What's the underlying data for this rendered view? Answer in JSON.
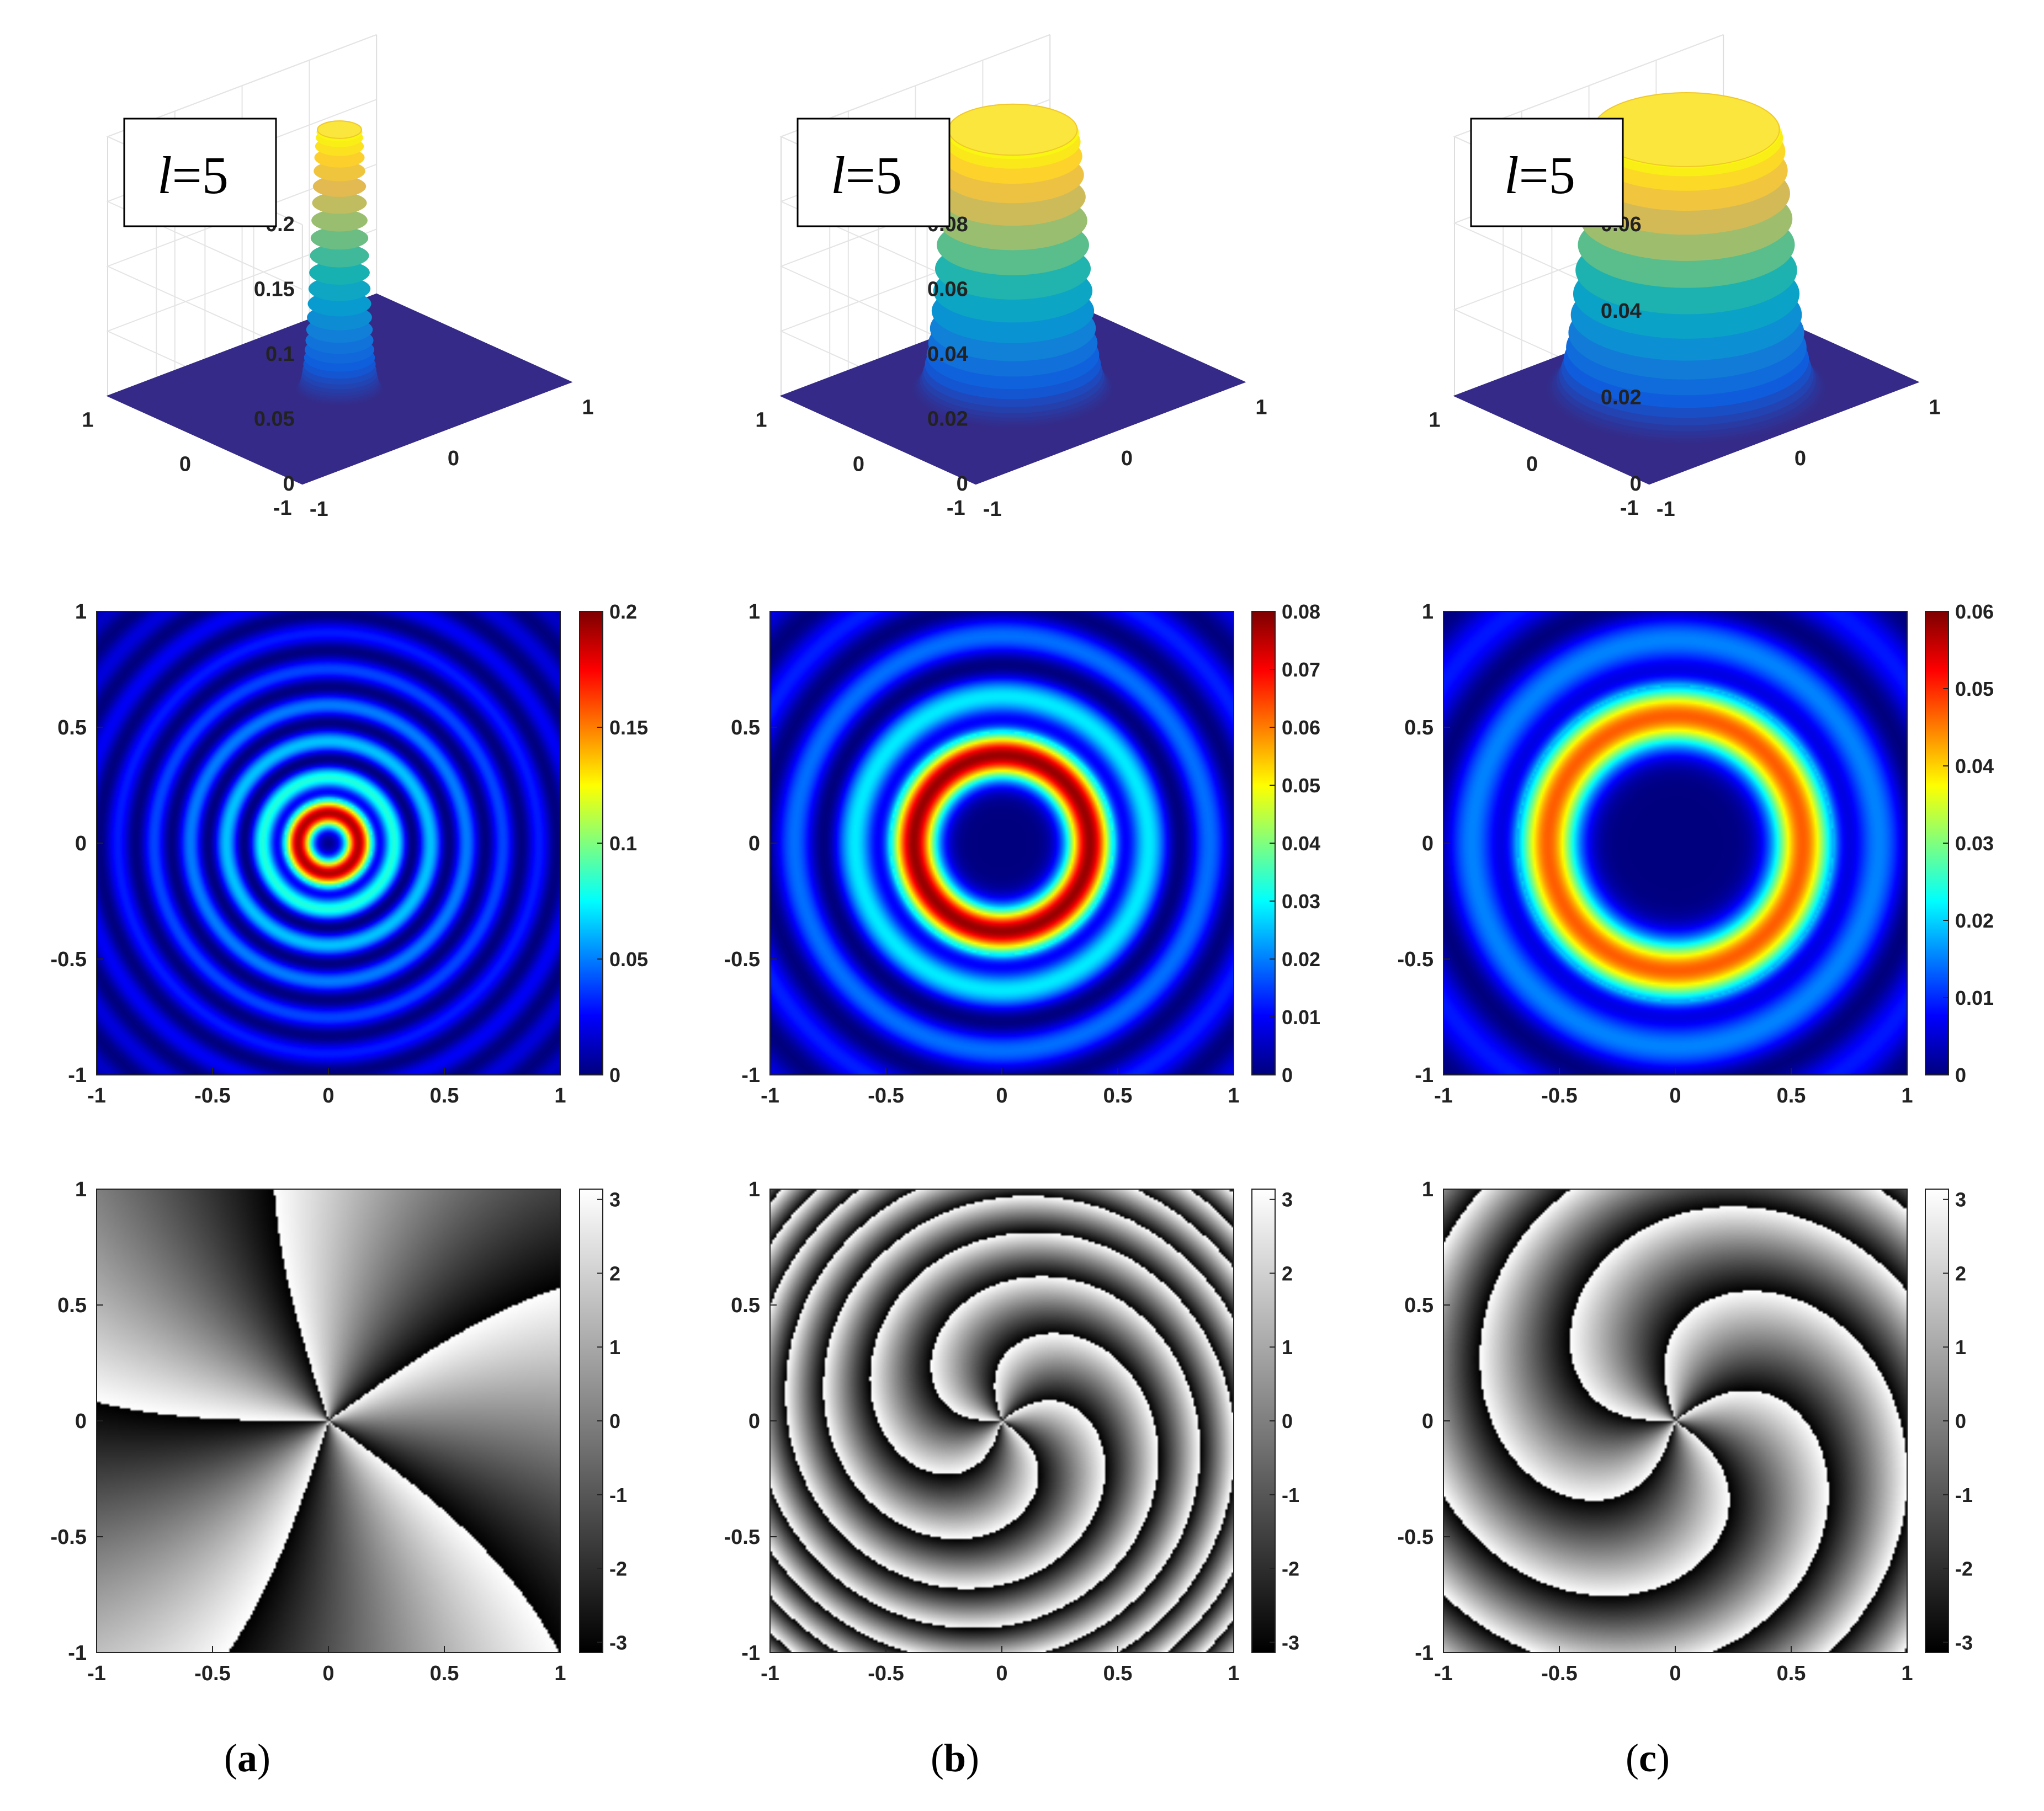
{
  "chart_data": [
    {
      "panel": "a",
      "row": "surface",
      "type": "area",
      "label_text": "l=5",
      "label_var": "l",
      "label_eq": "=5",
      "zlim": [
        0,
        0.2
      ],
      "ring_radius": 0.13,
      "ring_width": 0.06,
      "z_ticks": [
        "0",
        "0.05",
        "0.1",
        "0.15",
        "0.2"
      ],
      "x_ticks": [
        "-1",
        "0",
        "1"
      ],
      "y_ticks": [
        "-1",
        "0",
        "1"
      ]
    },
    {
      "panel": "b",
      "row": "surface",
      "type": "area",
      "label_text": "l=5",
      "label_var": "l",
      "label_eq": "=5",
      "zlim": [
        0,
        0.08
      ],
      "ring_radius": 0.38,
      "ring_width": 0.1,
      "z_ticks": [
        "0",
        "0.02",
        "0.04",
        "0.06",
        "0.08"
      ],
      "x_ticks": [
        "-1",
        "0",
        "1"
      ],
      "y_ticks": [
        "-1",
        "0",
        "1"
      ]
    },
    {
      "panel": "c",
      "row": "surface",
      "type": "area",
      "label_text": "l=5",
      "label_var": "l",
      "label_eq": "=5",
      "zlim": [
        0,
        0.06
      ],
      "ring_radius": 0.55,
      "ring_width": 0.13,
      "z_ticks": [
        "0",
        "0.02",
        "0.04",
        "0.06"
      ],
      "x_ticks": [
        "-1",
        "0",
        "1"
      ],
      "y_ticks": [
        "-1",
        "0",
        "1"
      ]
    },
    {
      "panel": "a",
      "row": "intensity",
      "type": "heatmap",
      "xlim": [
        -1,
        1
      ],
      "ylim": [
        -1,
        1
      ],
      "x_ticks": [
        "-1",
        "-0.5",
        "0",
        "0.5",
        "1"
      ],
      "y_ticks": [
        "-1",
        "-0.5",
        "0",
        "0.5",
        "1"
      ],
      "colorbar_ticks": [
        "0",
        "0.05",
        "0.1",
        "0.15",
        "0.2"
      ],
      "colorbar_range": [
        0,
        0.2
      ],
      "ring_radius": 0.13,
      "ring_width": 0.06,
      "ring_peak": 0.19
    },
    {
      "panel": "b",
      "row": "intensity",
      "type": "heatmap",
      "xlim": [
        -1,
        1
      ],
      "ylim": [
        -1,
        1
      ],
      "x_ticks": [
        "-1",
        "-0.5",
        "0",
        "0.5",
        "1"
      ],
      "y_ticks": [
        "-1",
        "-0.5",
        "0",
        "0.5",
        "1"
      ],
      "colorbar_ticks": [
        "0",
        "0.01",
        "0.02",
        "0.03",
        "0.04",
        "0.05",
        "0.06",
        "0.07",
        "0.08"
      ],
      "colorbar_range": [
        0,
        0.08
      ],
      "ring_radius": 0.38,
      "ring_width": 0.1,
      "ring_peak": 0.078
    },
    {
      "panel": "c",
      "row": "intensity",
      "type": "heatmap",
      "xlim": [
        -1,
        1
      ],
      "ylim": [
        -1,
        1
      ],
      "x_ticks": [
        "-1",
        "-0.5",
        "0",
        "0.5",
        "1"
      ],
      "y_ticks": [
        "-1",
        "-0.5",
        "0",
        "0.5",
        "1"
      ],
      "colorbar_ticks": [
        "0",
        "0.01",
        "0.02",
        "0.03",
        "0.04",
        "0.05",
        "0.06"
      ],
      "colorbar_range": [
        0,
        0.06
      ],
      "ring_radius": 0.55,
      "ring_width": 0.13,
      "ring_peak": 0.047
    },
    {
      "panel": "a",
      "row": "phase",
      "type": "heatmap",
      "xlim": [
        -1,
        1
      ],
      "ylim": [
        -1,
        1
      ],
      "x_ticks": [
        "-1",
        "-0.5",
        "0",
        "0.5",
        "1"
      ],
      "y_ticks": [
        "-1",
        "-0.5",
        "0",
        "0.5",
        "1"
      ],
      "colorbar_ticks": [
        "-3",
        "-2",
        "-1",
        "0",
        "1",
        "2",
        "3"
      ],
      "colorbar_range": [
        -3.14,
        3.14
      ],
      "topological_charge": 5,
      "spiral_twist": 0.4
    },
    {
      "panel": "b",
      "row": "phase",
      "type": "heatmap",
      "xlim": [
        -1,
        1
      ],
      "ylim": [
        -1,
        1
      ],
      "x_ticks": [
        "-1",
        "-0.5",
        "0",
        "0.5",
        "1"
      ],
      "y_ticks": [
        "-1",
        "-0.5",
        "0",
        "0.5",
        "1"
      ],
      "colorbar_ticks": [
        "-3",
        "-2",
        "-1",
        "0",
        "1",
        "2",
        "3"
      ],
      "colorbar_range": [
        -3.14,
        3.14
      ],
      "topological_charge": 5,
      "spiral_twist": 22
    },
    {
      "panel": "c",
      "row": "phase",
      "type": "heatmap",
      "xlim": [
        -1,
        1
      ],
      "ylim": [
        -1,
        1
      ],
      "x_ticks": [
        "-1",
        "-0.5",
        "0",
        "0.5",
        "1"
      ],
      "y_ticks": [
        "-1",
        "-0.5",
        "0",
        "0.5",
        "1"
      ],
      "colorbar_ticks": [
        "-3",
        "-2",
        "-1",
        "0",
        "1",
        "2",
        "3"
      ],
      "colorbar_range": [
        -3.14,
        3.14
      ],
      "topological_charge": 5,
      "spiral_twist": 10
    }
  ],
  "captions": [
    {
      "open": "(",
      "letter": "a",
      "close": ")"
    },
    {
      "open": "(",
      "letter": "b",
      "close": ")"
    },
    {
      "open": "(",
      "letter": "c",
      "close": ")"
    }
  ]
}
